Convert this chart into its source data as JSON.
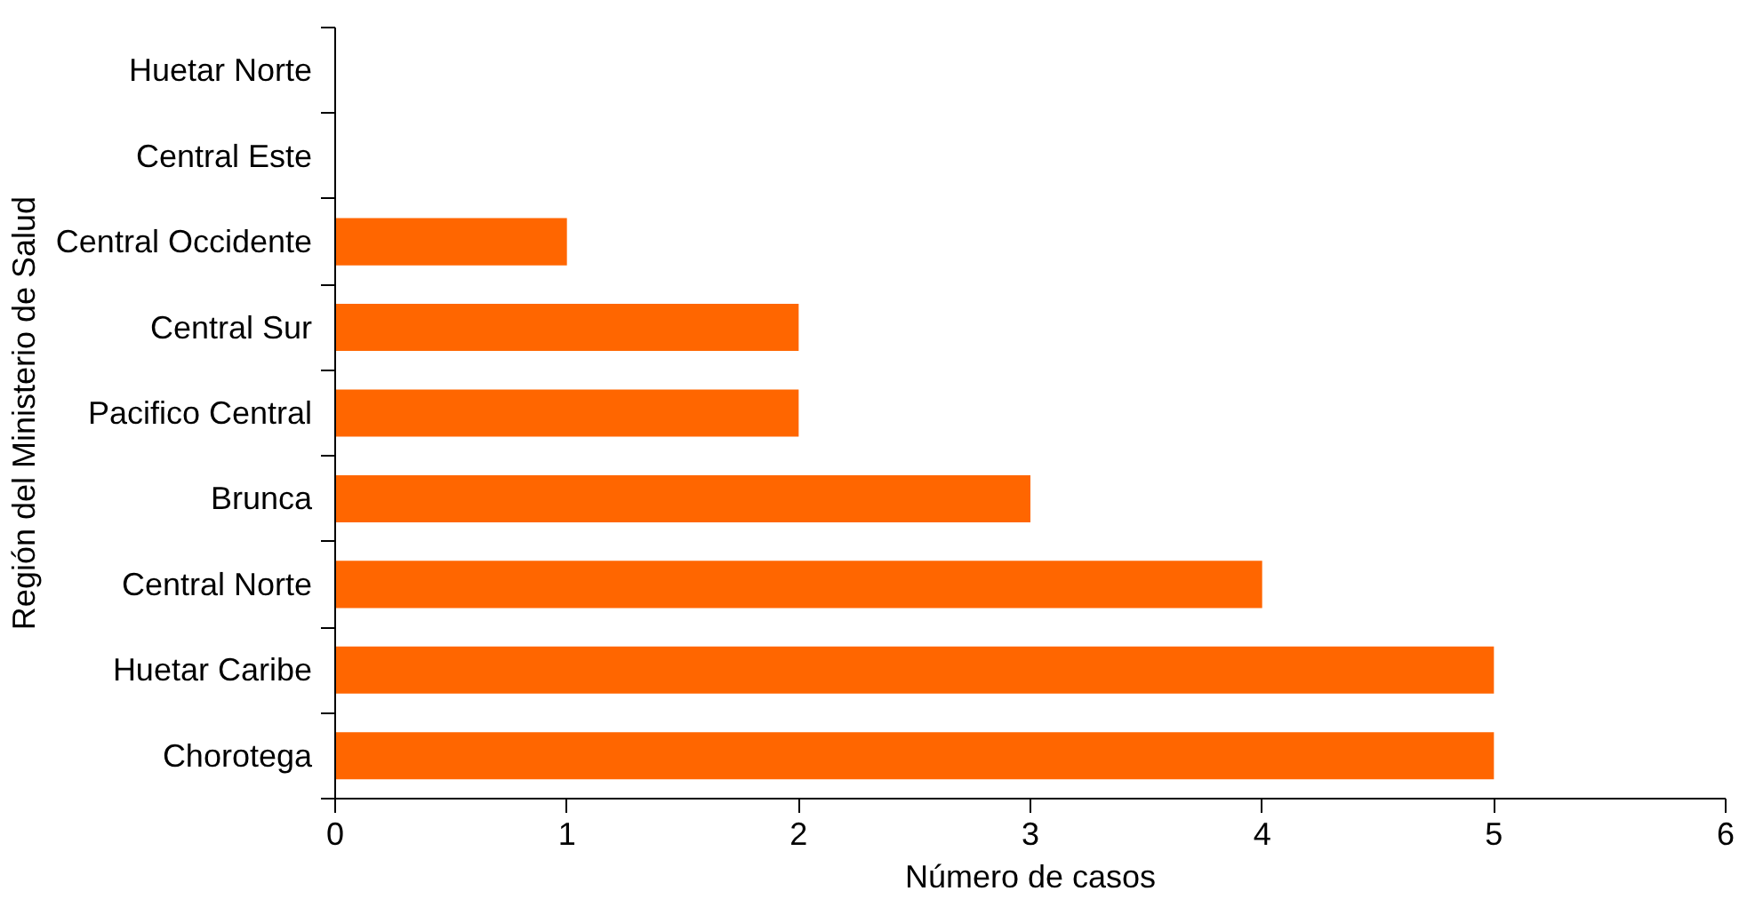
{
  "chart_data": {
    "type": "bar",
    "orientation": "horizontal",
    "xlabel": "Número de casos",
    "ylabel": "Región del Ministerio de Salud",
    "categories": [
      "Huetar Norte",
      "Central Este",
      "Central Occidente",
      "Central Sur",
      "Pacifico Central",
      "Brunca",
      "Central Norte",
      "Huetar Caribe",
      "Chorotega"
    ],
    "values": [
      0,
      0,
      1,
      2,
      2,
      3,
      4,
      5,
      5
    ],
    "color": "#ff6600",
    "xlim": [
      0,
      6
    ],
    "xticks": [
      0,
      1,
      2,
      3,
      4,
      5,
      6
    ],
    "grid": false
  }
}
